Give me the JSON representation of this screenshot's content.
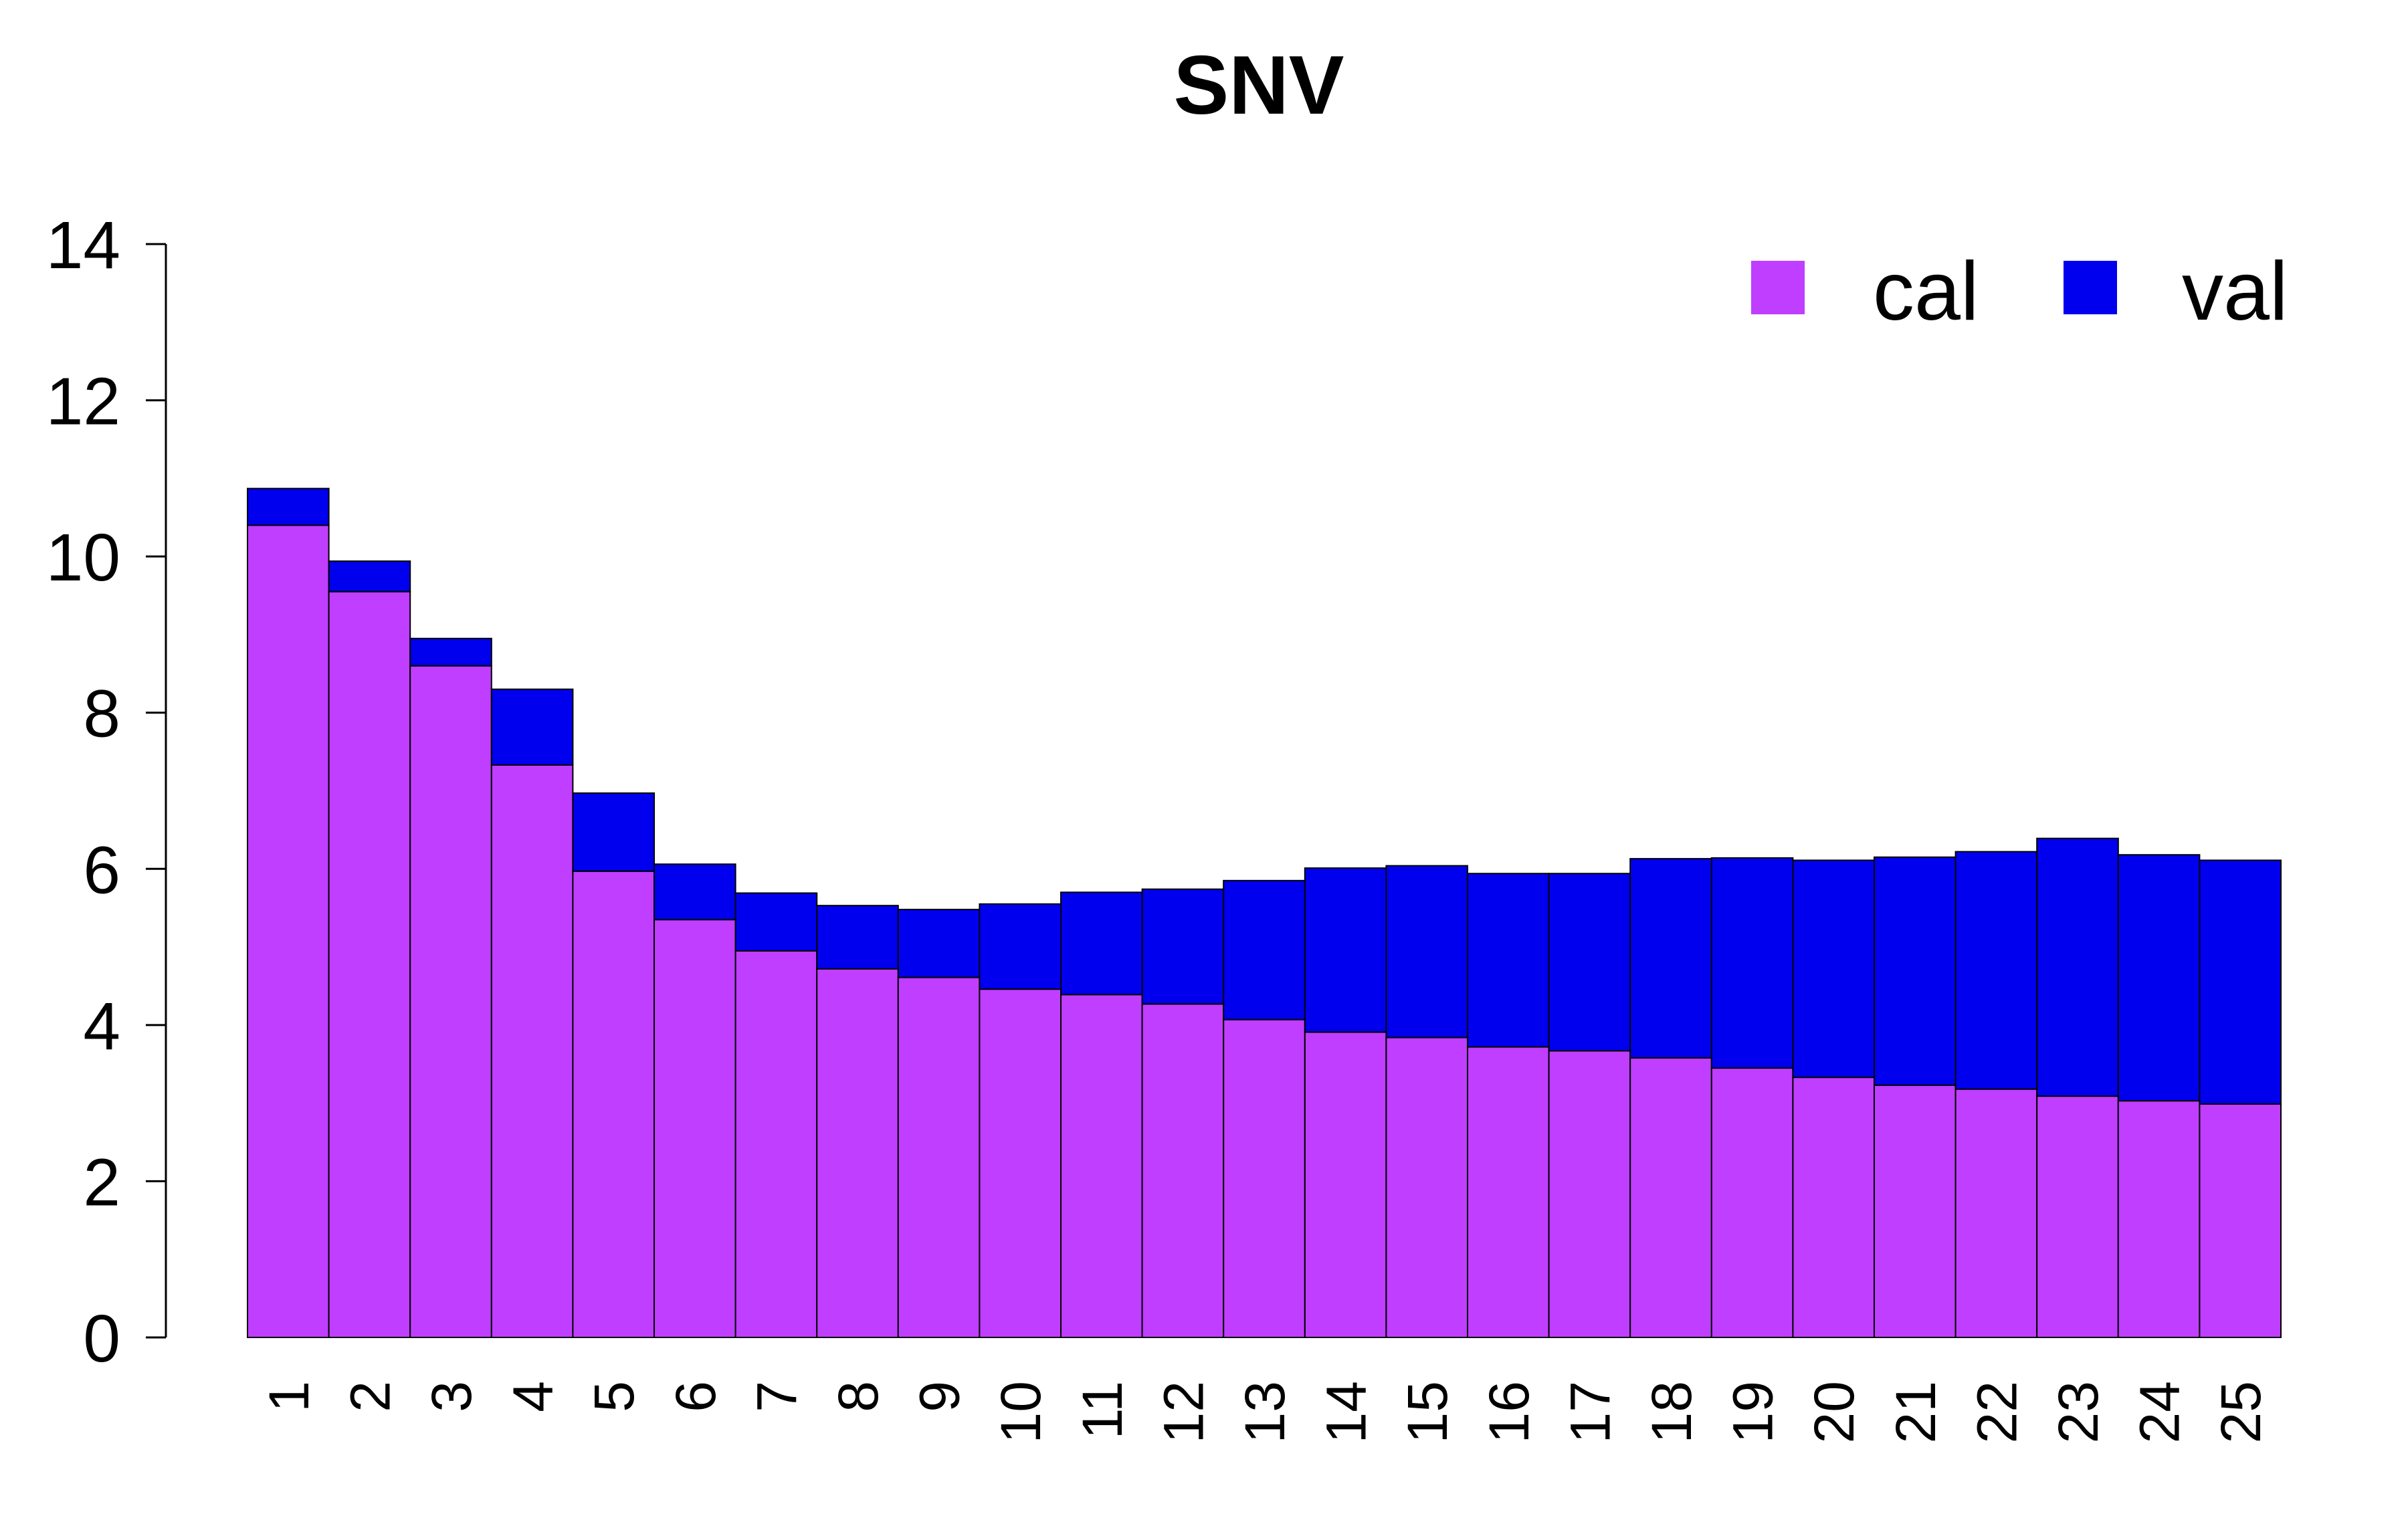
{
  "chart_data": {
    "type": "bar",
    "stacked": true,
    "title": "SNV",
    "xlabel": "",
    "ylabel": "",
    "ylim": [
      0,
      14
    ],
    "yticks": [
      "0",
      "2",
      "4",
      "6",
      "8",
      "10",
      "12",
      "14"
    ],
    "categories": [
      "1",
      "2",
      "3",
      "4",
      "5",
      "6",
      "7",
      "8",
      "9",
      "10",
      "11",
      "12",
      "13",
      "14",
      "15",
      "16",
      "17",
      "18",
      "19",
      "20",
      "21",
      "22",
      "23",
      "24",
      "25"
    ],
    "series": [
      {
        "name": "cal",
        "color": "#bf3eff",
        "values": [
          10.4,
          9.55,
          8.6,
          7.33,
          5.97,
          5.35,
          4.95,
          4.72,
          4.61,
          4.46,
          4.39,
          4.27,
          4.07,
          3.91,
          3.84,
          3.72,
          3.67,
          3.58,
          3.45,
          3.33,
          3.23,
          3.18,
          3.09,
          3.03,
          2.99
        ]
      },
      {
        "name": "val",
        "color": "#0000ee",
        "values": [
          0.47,
          0.39,
          0.35,
          0.97,
          1.0,
          0.71,
          0.74,
          0.81,
          0.87,
          1.09,
          1.31,
          1.47,
          1.78,
          2.1,
          2.2,
          2.22,
          2.27,
          2.55,
          2.69,
          2.78,
          2.92,
          3.04,
          3.3,
          3.15,
          3.12
        ]
      }
    ],
    "legend_position": "top-right",
    "grid": false
  }
}
